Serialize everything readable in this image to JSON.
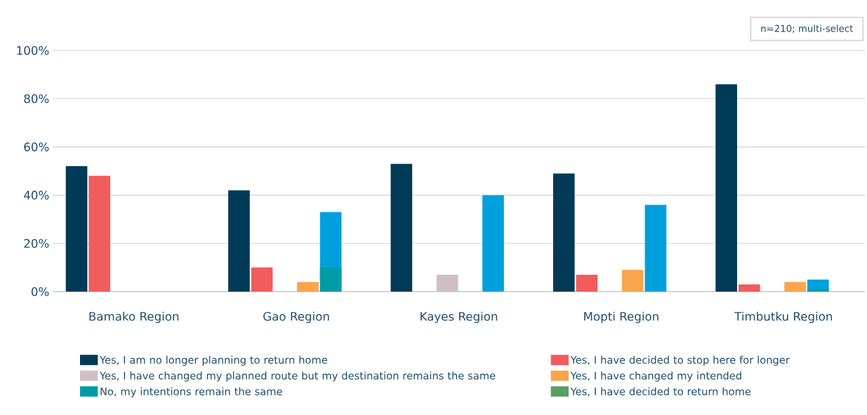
{
  "chart_data": {
    "type": "bar",
    "categories": [
      "Bamako Region",
      "Gao Region",
      "Kayes Region",
      "Mopti Region",
      "Timbutku Region"
    ],
    "series": [
      {
        "name": "Yes, I am no longer planning to return home",
        "color": "#003a57",
        "values": [
          52,
          42,
          53,
          49,
          86
        ]
      },
      {
        "name": "Yes, I have decided to stop here for longer",
        "color": "#f25c5c",
        "values": [
          48,
          10,
          0,
          7,
          3
        ]
      },
      {
        "name": "Yes, I have changed my planned route but my destination remains the same",
        "color": "#cfbfc4",
        "values": [
          0,
          0,
          7,
          0,
          0
        ]
      },
      {
        "name": "Yes, I have changed my intended",
        "color": "#f9a54b",
        "values": [
          0,
          4,
          0,
          9,
          4
        ]
      },
      {
        "color": "#00a0dc",
        "values": [
          0,
          33,
          40,
          36,
          5
        ]
      },
      {
        "name": "No, my intentions remain the same",
        "color": "#009ca6",
        "values": [
          0,
          10,
          0,
          0,
          1
        ]
      },
      {
        "name": "Yes, I have decided to return home",
        "color": "#5a9e62",
        "values": [
          0,
          0,
          0,
          0,
          0
        ]
      }
    ],
    "ylim": [
      0,
      100
    ],
    "yticks": [
      {
        "value": 0,
        "label": "0%"
      },
      {
        "value": 20,
        "label": "20%"
      },
      {
        "value": 40,
        "label": "40%"
      },
      {
        "value": 60,
        "label": "60%"
      },
      {
        "value": 80,
        "label": "80%"
      },
      {
        "value": 100,
        "label": "100%"
      }
    ],
    "grid": "y",
    "legend": "bottom",
    "annotations": [
      "n=210; multi-select"
    ]
  }
}
